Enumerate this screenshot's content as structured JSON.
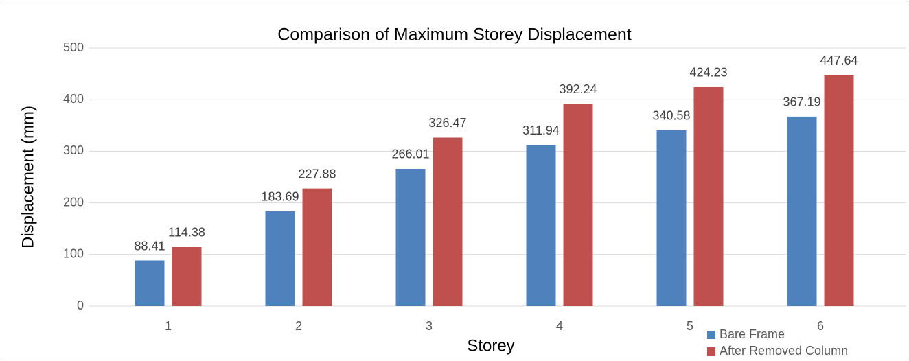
{
  "chart_data": {
    "type": "bar",
    "title": "Comparison of Maximum Storey Displacement",
    "x_label": "Storey",
    "y_label": "Displacement (mm)",
    "categories": [
      "1",
      "2",
      "3",
      "4",
      "5",
      "6"
    ],
    "series": [
      {
        "name": "Bare Frame",
        "color": "#4f81bd",
        "values": [
          88.41,
          183.69,
          266.01,
          311.94,
          340.58,
          367.19
        ]
      },
      {
        "name": "After Removed Column",
        "color": "#c0504d",
        "values": [
          114.38,
          227.88,
          326.47,
          392.24,
          424.23,
          447.64
        ]
      }
    ],
    "ylim": [
      0,
      500
    ],
    "yticks": [
      0,
      100,
      200,
      300,
      400,
      500
    ],
    "grid": true,
    "legend": "bottom-right"
  }
}
